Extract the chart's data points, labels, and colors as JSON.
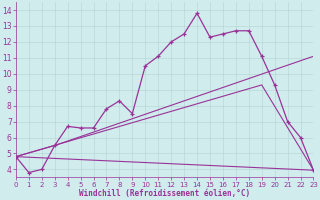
{
  "xlabel": "Windchill (Refroidissement éolien,°C)",
  "background_color": "#d0ecec",
  "grid_color": "#b8d8d8",
  "line_color": "#993399",
  "xlim": [
    0,
    23
  ],
  "ylim": [
    3.5,
    14.5
  ],
  "xticks": [
    0,
    1,
    2,
    3,
    4,
    5,
    6,
    7,
    8,
    9,
    10,
    11,
    12,
    13,
    14,
    15,
    16,
    17,
    18,
    19,
    20,
    21,
    22,
    23
  ],
  "yticks": [
    4,
    5,
    6,
    7,
    8,
    9,
    10,
    11,
    12,
    13,
    14
  ],
  "series1_x": [
    0,
    1,
    2,
    3,
    4,
    5,
    6,
    7,
    8,
    9,
    10,
    11,
    12,
    13,
    14,
    15,
    16,
    17,
    18,
    19,
    20,
    21,
    22,
    23
  ],
  "series1_y": [
    4.8,
    3.8,
    4.0,
    5.5,
    6.7,
    6.6,
    6.6,
    7.8,
    8.3,
    7.5,
    10.5,
    11.1,
    12.0,
    12.5,
    13.8,
    12.3,
    12.5,
    12.7,
    12.7,
    11.1,
    9.3,
    7.0,
    6.0,
    3.95
  ],
  "series2_x": [
    0,
    23
  ],
  "series2_y": [
    4.8,
    3.95
  ],
  "series3_x": [
    0,
    19,
    23
  ],
  "series3_y": [
    4.8,
    9.3,
    3.95
  ],
  "series4_x": [
    0,
    3,
    23
  ],
  "series4_y": [
    4.8,
    5.5,
    11.1
  ]
}
